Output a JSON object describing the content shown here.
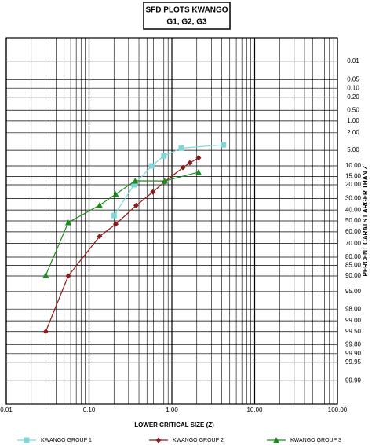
{
  "chart_data": {
    "type": "line",
    "title": "SFD PLOTS KWANGO",
    "subtitle": "G1, G2, G3",
    "x_label": "LOWER CRITICAL SIZE (Z)",
    "y_label": "PERCENT CARATS LARGER THAN Z",
    "x_scale": "log",
    "y_scale": "probability",
    "y_axis_side": "right",
    "grid": true,
    "minor_grid": true,
    "legend": "bottom",
    "xlim": [
      0.01,
      100
    ],
    "xticks": [
      0.01,
      {
        "value": 0.1,
        "label": "0.10"
      },
      {
        "value": 1,
        "label": "1.00"
      },
      {
        "value": 10,
        "label": "10.00"
      },
      {
        "value": 100,
        "label": "100.00"
      }
    ],
    "ylim": [
      0.001,
      99.999
    ],
    "yticks": [
      0.01,
      0.05,
      {
        "value": 0.1,
        "label": "0.10"
      },
      {
        "value": 0.2,
        "label": "0.20"
      },
      {
        "value": 0.5,
        "label": "0.50"
      },
      {
        "value": 1,
        "label": "1.00"
      },
      {
        "value": 2,
        "label": "2.00"
      },
      {
        "value": 5,
        "label": "5.00"
      },
      {
        "value": 10,
        "label": "10.00"
      },
      {
        "value": 15,
        "label": "15.00"
      },
      {
        "value": 20,
        "label": "20.00"
      },
      {
        "value": 30,
        "label": "30.00"
      },
      {
        "value": 40,
        "label": "40.00"
      },
      {
        "value": 50,
        "label": "50.00"
      },
      {
        "value": 60,
        "label": "60.00"
      },
      {
        "value": 70,
        "label": "70.00"
      },
      {
        "value": 80,
        "label": "80.00"
      },
      {
        "value": 85,
        "label": "85.00"
      },
      {
        "value": 90,
        "label": "90.00"
      },
      {
        "value": 95,
        "label": "95.00"
      },
      {
        "value": 98,
        "label": "98.00"
      },
      {
        "value": 99,
        "label": "99.00"
      },
      {
        "value": 99.5,
        "label": "99.50"
      },
      {
        "value": 99.8,
        "label": "99.80"
      },
      {
        "value": 99.9,
        "label": "99.90"
      },
      99.95,
      99.99
    ],
    "series": [
      {
        "name": "KWANGO GROUP 1",
        "color": "#7fd8d8",
        "marker": "square",
        "x": [
          0.2,
          0.35,
          0.57,
          0.8,
          1.3,
          4.2
        ],
        "values": [
          45,
          20,
          10,
          6.5,
          4.5,
          3.8
        ]
      },
      {
        "name": "KWANGO GROUP 2",
        "color": "#8b1a1a",
        "marker": "diamond",
        "x": [
          0.03,
          0.056,
          0.134,
          0.21,
          0.37,
          0.59,
          0.82,
          1.36,
          1.65,
          2.1
        ],
        "values": [
          99.5,
          90,
          64,
          53,
          36,
          25,
          18,
          10.7,
          8.8,
          7.1
        ]
      },
      {
        "name": "KWANGO GROUP 3",
        "color": "#1a8a1a",
        "marker": "triangle",
        "x": [
          0.03,
          0.056,
          0.134,
          0.21,
          0.36,
          0.82,
          2.1
        ],
        "values": [
          89.7,
          51.5,
          35.7,
          26.7,
          17.5,
          17.6,
          12.8
        ]
      }
    ]
  }
}
